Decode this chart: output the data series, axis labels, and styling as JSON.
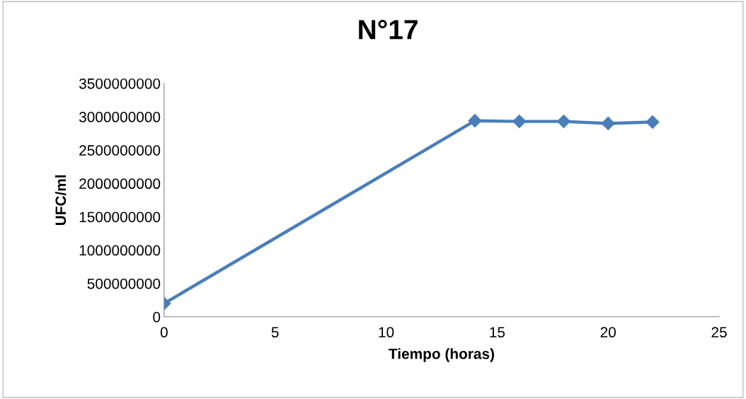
{
  "chart_data": {
    "type": "line",
    "title": "N°17",
    "xlabel": "Tiempo (horas)",
    "ylabel": "UFC/ml",
    "x": [
      0,
      14,
      16,
      18,
      20,
      22
    ],
    "series": [
      {
        "color": "#4a7ebb",
        "values": [
          200000000,
          2940000000,
          2930000000,
          2930000000,
          2900000000,
          2920000000
        ]
      }
    ],
    "xlim": [
      0,
      25
    ],
    "xticks": [
      0,
      5,
      10,
      15,
      20,
      25
    ],
    "ylim": [
      0,
      3500000000
    ],
    "yticks": [
      0,
      500000000,
      1000000000,
      1500000000,
      2000000000,
      2500000000,
      3000000000,
      3500000000
    ],
    "grid": false,
    "legend": false,
    "marker": "diamond",
    "line_style": "solid"
  }
}
